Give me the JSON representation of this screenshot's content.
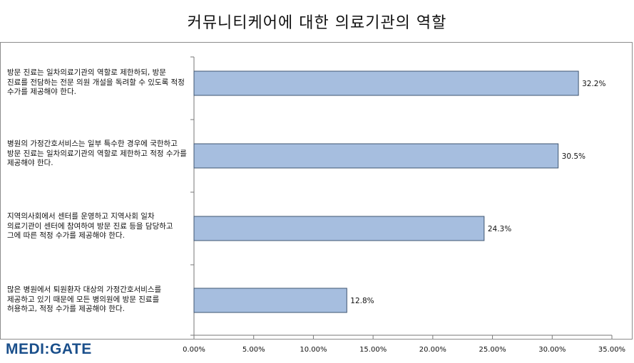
{
  "chart_data": {
    "type": "bar",
    "orientation": "horizontal",
    "title": "커뮤니티케어에 대한 의료기관의 역할",
    "categories": [
      "방문 진료는 일차의료기관의 역할로 제한하되, 방문 진료를 전담하는 전문 의원 개설을 독려할 수 있도록 적정 수가를 제공해야 한다.",
      "병원의 가정간호서비스는 일부 특수한 경우에 국한하고 방문 진료는 일차의료기관의 역할로 제한하고 적정 수가를 제공해야 한다.",
      "지역의사회에서 센터를 운영하고 지역사회 일차 의료기관이 센터에 참여하여 방문 진료 등을 담당하고 그에 따른 적정 수가를 제공해야 한다.",
      "많은 병원에서 퇴원환자 대상의 가정간호서비스를 제공하고 있기 때문에 모든 병의원에 방문 진료를 허용하고, 적정 수가를 제공해야 한다."
    ],
    "values": [
      32.2,
      30.5,
      24.3,
      12.8
    ],
    "value_labels": [
      "32.2%",
      "30.5%",
      "24.3%",
      "12.8%"
    ],
    "xlim": [
      0,
      35
    ],
    "x_ticks": [
      0,
      5,
      10,
      15,
      20,
      25,
      30,
      35
    ],
    "x_tick_labels": [
      "0.00%",
      "5.00%",
      "10.00%",
      "15.00%",
      "20.00%",
      "25.00%",
      "30.00%",
      "35.00%"
    ],
    "grid": false,
    "bar_color": "#a6bedf",
    "bar_edge_color": "#3f5570"
  },
  "brand": {
    "logo_text": "MEDI:GATE",
    "logo_color": "#1a4f8b"
  }
}
